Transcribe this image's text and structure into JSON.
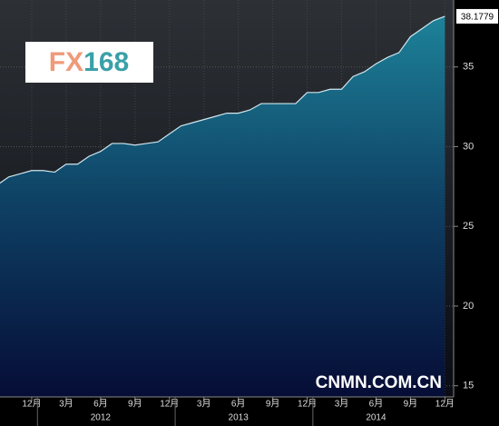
{
  "chart_data": {
    "type": "area",
    "logo": [
      "FX",
      "168"
    ],
    "watermark": "CNMN.COM.CN",
    "categories": [
      null,
      null,
      null,
      "12月",
      null,
      null,
      "3月",
      null,
      null,
      "6月",
      null,
      null,
      "9月",
      null,
      null,
      "12月",
      null,
      null,
      "3月",
      null,
      null,
      "6月",
      null,
      null,
      "9月",
      null,
      null,
      "12月",
      null,
      null,
      "3月",
      null,
      null,
      "6月",
      null,
      null,
      "9月",
      null,
      null,
      "12月"
    ],
    "years": [
      "2012",
      "2013",
      "2014"
    ],
    "values": [
      27.6,
      28.1,
      28.3,
      28.5,
      28.5,
      28.4,
      28.9,
      28.9,
      29.4,
      29.7,
      30.2,
      30.2,
      30.1,
      30.2,
      30.3,
      30.8,
      31.3,
      31.5,
      31.7,
      31.9,
      32.1,
      32.1,
      32.3,
      32.7,
      32.7,
      32.7,
      32.7,
      33.4,
      33.4,
      33.6,
      33.6,
      34.4,
      34.7,
      35.2,
      35.6,
      35.9,
      36.9,
      37.4,
      37.9,
      38.1779
    ],
    "color": "#1a7d93",
    "ylim": [
      14.3,
      39.2
    ],
    "yticks": [
      15,
      20,
      25,
      30,
      35
    ],
    "grid": true
  }
}
